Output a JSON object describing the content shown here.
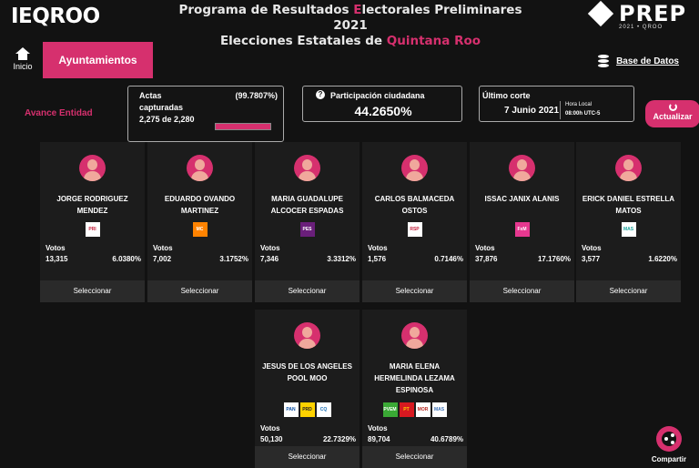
{
  "header": {
    "logo": "IEQROO",
    "title_line1_a": "Programa de Resultados ",
    "title_line1_accent": "E",
    "title_line1_b": "lectorales Preliminares 2021",
    "title_line2_a": "Elecciones Estatales de ",
    "title_line2_accent": "Quintana Roo",
    "prep": "PREP",
    "prep_sub": "2021 • QROO"
  },
  "nav": {
    "home_label": "Inicio",
    "tab_label": "Ayuntamientos",
    "db_label": "Base de Datos"
  },
  "summary": {
    "avance_label": "Avance Entidad",
    "actas_label": "Actas capturadas",
    "actas_count": "2,275 de 2,280",
    "actas_pct": "(99.7807%)",
    "actas_fraction": 0.997807,
    "participacion_label": "Participación ciudadana",
    "participacion_value": "44.2650%",
    "corte_label": "Último corte",
    "corte_date": "7 Junio 2021",
    "hora_local_label": "Hora Local",
    "hora_local_time": "08:00h UTC-5",
    "actualizar_label": "Actualizar"
  },
  "candidates": [
    {
      "name": "JORGE RODRIGUEZ MENDEZ",
      "parties": [
        "PRI"
      ],
      "votos_label": "Votos",
      "votos": "13,315",
      "pct": "6.0380%",
      "select_label": "Seleccionar"
    },
    {
      "name": "EDUARDO OVANDO MARTINEZ",
      "parties": [
        "MC"
      ],
      "votos_label": "Votos",
      "votos": "7,002",
      "pct": "3.1752%",
      "select_label": "Seleccionar"
    },
    {
      "name": "MARIA GUADALUPE ALCOCER ESPADAS",
      "parties": [
        "PES"
      ],
      "votos_label": "Votos",
      "votos": "7,346",
      "pct": "3.3312%",
      "select_label": "Seleccionar"
    },
    {
      "name": "CARLOS BALMACEDA OSTOS",
      "parties": [
        "RSP"
      ],
      "votos_label": "Votos",
      "votos": "1,576",
      "pct": "0.7146%",
      "select_label": "Seleccionar"
    },
    {
      "name": "ISSAC JANIX ALANIS",
      "parties": [
        "FUERZA"
      ],
      "votos_label": "Votos",
      "votos": "37,876",
      "pct": "17.1760%",
      "select_label": "Seleccionar"
    },
    {
      "name": "ERICK DANIEL ESTRELLA MATOS",
      "parties": [
        "MAS"
      ],
      "votos_label": "Votos",
      "votos": "3,577",
      "pct": "1.6220%",
      "select_label": "Seleccionar"
    },
    {
      "name": "JESUS DE LOS ANGELES POOL MOO",
      "parties": [
        "PAN",
        "PRD",
        "CQ"
      ],
      "votos_label": "Votos",
      "votos": "50,130",
      "pct": "22.7329%",
      "select_label": "Seleccionar"
    },
    {
      "name": "MARIA ELENA HERMELINDA LEZAMA ESPINOSA",
      "parties": [
        "VERDE",
        "PT",
        "MORENA",
        "MAS2"
      ],
      "votos_label": "Votos",
      "votos": "89,704",
      "pct": "40.6789%",
      "select_label": "Seleccionar"
    }
  ],
  "share_label": "Compartir",
  "colors": {
    "accent": "#d6306e",
    "background": "#121212",
    "card": "#1c1c1c"
  }
}
